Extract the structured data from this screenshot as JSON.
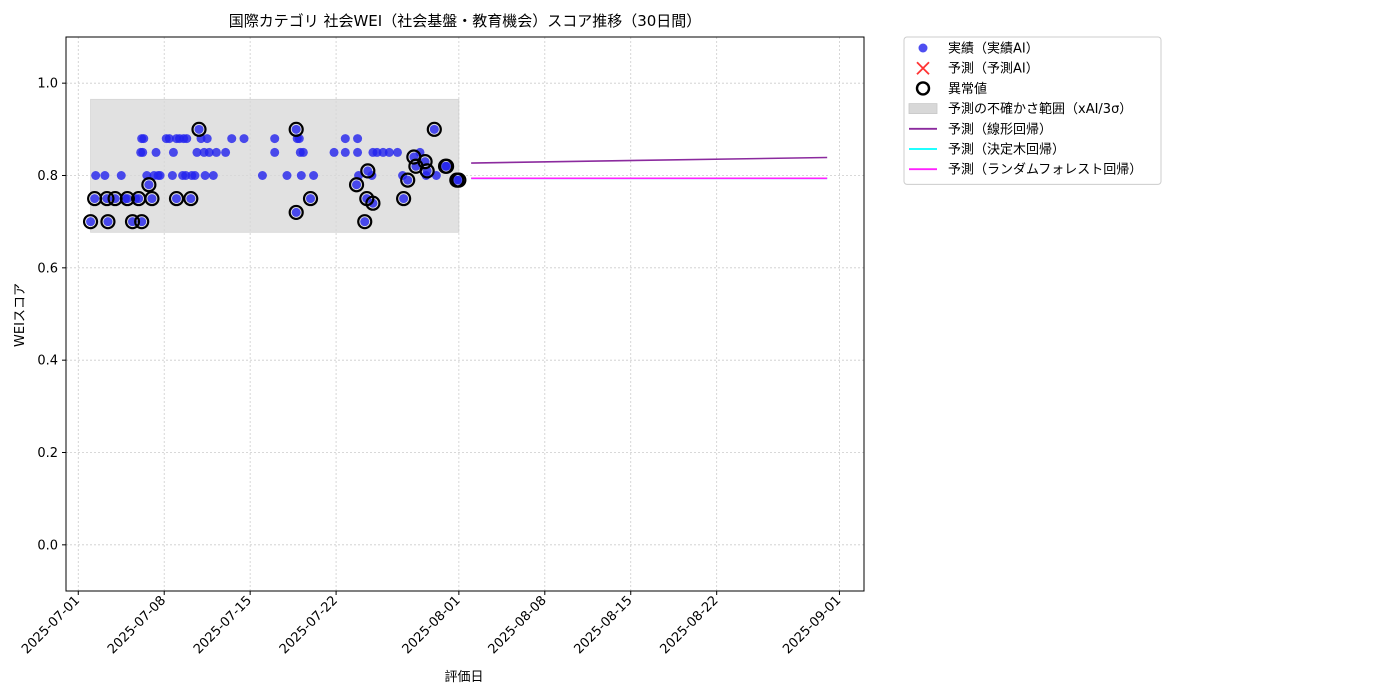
{
  "chart_data": {
    "type": "scatter",
    "title": "国際カテゴリ 社会WEI（社会基盤・教育機会）スコア推移（30日間）",
    "xlabel": "評価日",
    "ylabel": "WEIスコア",
    "xlim": [
      "2025-06-30T00:00",
      "2025-09-03T00:00"
    ],
    "ylim": [
      -0.1,
      1.1
    ],
    "x_ticks": [
      "2025-07-01",
      "2025-07-08",
      "2025-07-15",
      "2025-07-22",
      "2025-08-01",
      "2025-08-08",
      "2025-08-15",
      "2025-08-22",
      "2025-09-01"
    ],
    "y_ticks": [
      "0.0",
      "0.2",
      "0.4",
      "0.6",
      "0.8",
      "1.0"
    ],
    "grid": true,
    "legend_position": "outside-top-right",
    "colors": {
      "actual": "#2222ee",
      "predicted": "#ff3333",
      "anomaly": "#000000",
      "band": "#d8d8d8",
      "linear": "#8b2a9e",
      "tree": "#00ffff",
      "forest": "#ff22ff",
      "grid": "#cccccc"
    },
    "legend": [
      {
        "label": "実績（実績AI）",
        "marker": "circle"
      },
      {
        "label": "予測（予測AI）",
        "marker": "x"
      },
      {
        "label": "異常値",
        "marker": "ring"
      },
      {
        "label": "予測の不確かさ範囲（xAI/3σ）",
        "marker": "band"
      },
      {
        "label": "予測（線形回帰）",
        "marker": "line-linear"
      },
      {
        "label": "予測（決定木回帰）",
        "marker": "line-tree"
      },
      {
        "label": "予測（ランダムフォレスト回帰）",
        "marker": "line-forest"
      }
    ],
    "uncertainty_band": {
      "x": [
        "2025-07-02T00:00",
        "2025-08-01T00:00"
      ],
      "y": [
        0.677,
        0.965
      ]
    },
    "series": [
      {
        "name": "実績（実績AI）",
        "points": [
          [
            "2025-07-02T00:00",
            0.7
          ],
          [
            "2025-07-02T08:00",
            0.75
          ],
          [
            "2025-07-02T10:00",
            0.8
          ],
          [
            "2025-07-03T04:00",
            0.8
          ],
          [
            "2025-07-03T08:00",
            0.75
          ],
          [
            "2025-07-03T10:00",
            0.7
          ],
          [
            "2025-07-04T00:00",
            0.75
          ],
          [
            "2025-07-04T12:00",
            0.8
          ],
          [
            "2025-07-04T20:00",
            0.75
          ],
          [
            "2025-07-05T00:00",
            0.75
          ],
          [
            "2025-07-05T10:00",
            0.7
          ],
          [
            "2025-07-05T16:00",
            0.75
          ],
          [
            "2025-07-05T22:00",
            0.75
          ],
          [
            "2025-07-06T04:00",
            0.7
          ],
          [
            "2025-07-06T02:00",
            0.85
          ],
          [
            "2025-07-06T04:00",
            0.88
          ],
          [
            "2025-07-06T06:00",
            0.85
          ],
          [
            "2025-07-06T08:00",
            0.88
          ],
          [
            "2025-07-06T18:00",
            0.78
          ],
          [
            "2025-07-06T14:00",
            0.8
          ],
          [
            "2025-07-07T00:00",
            0.75
          ],
          [
            "2025-07-07T04:00",
            0.8
          ],
          [
            "2025-07-07T08:00",
            0.85
          ],
          [
            "2025-07-07T12:00",
            0.8
          ],
          [
            "2025-07-07T16:00",
            0.8
          ],
          [
            "2025-07-08T04:00",
            0.88
          ],
          [
            "2025-07-08T10:00",
            0.88
          ],
          [
            "2025-07-08T16:00",
            0.8
          ],
          [
            "2025-07-08T18:00",
            0.85
          ],
          [
            "2025-07-09T00:00",
            0.75
          ],
          [
            "2025-07-09T00:00",
            0.88
          ],
          [
            "2025-07-09T06:00",
            0.88
          ],
          [
            "2025-07-09T12:00",
            0.8
          ],
          [
            "2025-07-09T14:00",
            0.88
          ],
          [
            "2025-07-09T18:00",
            0.8
          ],
          [
            "2025-07-09T20:00",
            0.88
          ],
          [
            "2025-07-10T04:00",
            0.75
          ],
          [
            "2025-07-10T06:00",
            0.8
          ],
          [
            "2025-07-10T12:00",
            0.8
          ],
          [
            "2025-07-10T16:00",
            0.85
          ],
          [
            "2025-07-10T20:00",
            0.9
          ],
          [
            "2025-07-11T00:00",
            0.88
          ],
          [
            "2025-07-11T06:00",
            0.85
          ],
          [
            "2025-07-11T08:00",
            0.8
          ],
          [
            "2025-07-11T12:00",
            0.88
          ],
          [
            "2025-07-11T16:00",
            0.85
          ],
          [
            "2025-07-12T00:00",
            0.8
          ],
          [
            "2025-07-12T06:00",
            0.85
          ],
          [
            "2025-07-13T00:00",
            0.85
          ],
          [
            "2025-07-13T12:00",
            0.88
          ],
          [
            "2025-07-14T12:00",
            0.88
          ],
          [
            "2025-07-16T00:00",
            0.8
          ],
          [
            "2025-07-17T00:00",
            0.85
          ],
          [
            "2025-07-17T00:00",
            0.88
          ],
          [
            "2025-07-18T00:00",
            0.8
          ],
          [
            "2025-07-18T18:00",
            0.72
          ],
          [
            "2025-07-18T18:00",
            0.9
          ],
          [
            "2025-07-18T20:00",
            0.88
          ],
          [
            "2025-07-19T00:00",
            0.88
          ],
          [
            "2025-07-19T02:00",
            0.85
          ],
          [
            "2025-07-19T04:00",
            0.8
          ],
          [
            "2025-07-19T08:00",
            0.85
          ],
          [
            "2025-07-19T22:00",
            0.75
          ],
          [
            "2025-07-20T04:00",
            0.8
          ],
          [
            "2025-07-21T20:00",
            0.85
          ],
          [
            "2025-07-22T18:00",
            0.88
          ],
          [
            "2025-07-22T18:00",
            0.85
          ],
          [
            "2025-07-23T18:00",
            0.88
          ],
          [
            "2025-07-23T18:00",
            0.85
          ],
          [
            "2025-07-23T16:00",
            0.78
          ],
          [
            "2025-07-23T20:00",
            0.8
          ],
          [
            "2025-07-24T08:00",
            0.7
          ],
          [
            "2025-07-24T12:00",
            0.75
          ],
          [
            "2025-07-24T14:00",
            0.81
          ],
          [
            "2025-07-24T22:00",
            0.8
          ],
          [
            "2025-07-25T00:00",
            0.74
          ],
          [
            "2025-07-25T00:00",
            0.85
          ],
          [
            "2025-07-25T08:00",
            0.85
          ],
          [
            "2025-07-25T20:00",
            0.85
          ],
          [
            "2025-07-26T08:00",
            0.85
          ],
          [
            "2025-07-27T00:00",
            0.85
          ],
          [
            "2025-07-27T10:00",
            0.8
          ],
          [
            "2025-07-27T12:00",
            0.75
          ],
          [
            "2025-07-27T20:00",
            0.79
          ],
          [
            "2025-07-28T08:00",
            0.84
          ],
          [
            "2025-07-28T12:00",
            0.82
          ],
          [
            "2025-07-28T20:00",
            0.85
          ],
          [
            "2025-07-29T06:00",
            0.83
          ],
          [
            "2025-07-29T08:00",
            0.8
          ],
          [
            "2025-07-29T10:00",
            0.81
          ],
          [
            "2025-07-30T00:00",
            0.9
          ],
          [
            "2025-07-30T04:00",
            0.8
          ],
          [
            "2025-07-30T22:00",
            0.82
          ],
          [
            "2025-07-31T00:00",
            0.82
          ],
          [
            "2025-07-31T20:00",
            0.79
          ],
          [
            "2025-08-01T00:00",
            0.79
          ]
        ]
      }
    ],
    "anomalies": [
      [
        "2025-07-02T00:00",
        0.7
      ],
      [
        "2025-07-02T08:00",
        0.75
      ],
      [
        "2025-07-03T08:00",
        0.75
      ],
      [
        "2025-07-03T10:00",
        0.7
      ],
      [
        "2025-07-04T00:00",
        0.75
      ],
      [
        "2025-07-05T00:00",
        0.75
      ],
      [
        "2025-07-05T10:00",
        0.7
      ],
      [
        "2025-07-05T22:00",
        0.75
      ],
      [
        "2025-07-06T04:00",
        0.7
      ],
      [
        "2025-07-06T18:00",
        0.78
      ],
      [
        "2025-07-07T00:00",
        0.75
      ],
      [
        "2025-07-09T00:00",
        0.75
      ],
      [
        "2025-07-10T04:00",
        0.75
      ],
      [
        "2025-07-10T20:00",
        0.9
      ],
      [
        "2025-07-18T18:00",
        0.9
      ],
      [
        "2025-07-18T18:00",
        0.72
      ],
      [
        "2025-07-19T22:00",
        0.75
      ],
      [
        "2025-07-23T16:00",
        0.78
      ],
      [
        "2025-07-24T08:00",
        0.7
      ],
      [
        "2025-07-24T12:00",
        0.75
      ],
      [
        "2025-07-24T14:00",
        0.81
      ],
      [
        "2025-07-25T00:00",
        0.74
      ],
      [
        "2025-07-27T12:00",
        0.75
      ],
      [
        "2025-07-27T20:00",
        0.79
      ],
      [
        "2025-07-28T08:00",
        0.84
      ],
      [
        "2025-07-28T12:00",
        0.82
      ],
      [
        "2025-07-29T06:00",
        0.83
      ],
      [
        "2025-07-29T10:00",
        0.81
      ],
      [
        "2025-07-30T00:00",
        0.9
      ],
      [
        "2025-07-30T22:00",
        0.82
      ],
      [
        "2025-07-31T00:00",
        0.82
      ],
      [
        "2025-07-31T20:00",
        0.79
      ],
      [
        "2025-08-01T00:00",
        0.79
      ]
    ],
    "lines": [
      {
        "name": "予測（線形回帰）",
        "color": "#8b2a9e",
        "points": [
          [
            "2025-08-02T00:00",
            0.827
          ],
          [
            "2025-08-31T00:00",
            0.839
          ]
        ]
      },
      {
        "name": "予測（決定木回帰）",
        "color": "#00ffff",
        "points": [
          [
            "2025-08-02T00:00",
            0.794
          ],
          [
            "2025-08-31T00:00",
            0.794
          ]
        ]
      },
      {
        "name": "予測（ランダムフォレスト回帰）",
        "color": "#ff22ff",
        "points": [
          [
            "2025-08-02T00:00",
            0.794
          ],
          [
            "2025-08-31T00:00",
            0.794
          ]
        ]
      }
    ]
  }
}
